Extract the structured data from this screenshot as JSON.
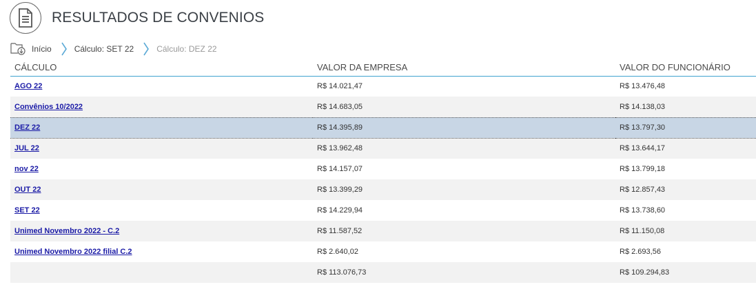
{
  "header": {
    "title": "RESULTADOS DE CONVENIOS",
    "icon": "document-icon"
  },
  "breadcrumb": {
    "home_label": "Início",
    "items": [
      "Cálculo: SET 22"
    ],
    "current": "Cálculo: DEZ 22"
  },
  "table": {
    "columns": [
      "CÁLCULO",
      "VALOR DA EMPRESA",
      "VALOR DO FUNCIONÁRIO"
    ],
    "rows": [
      {
        "calculo": "AGO 22",
        "empresa": "R$ 14.021,47",
        "funcionario": "R$ 13.476,48"
      },
      {
        "calculo": "Convênios 10/2022",
        "empresa": "R$ 14.683,05",
        "funcionario": "R$ 14.138,03"
      },
      {
        "calculo": "DEZ 22",
        "empresa": "R$ 14.395,89",
        "funcionario": "R$ 13.797,30",
        "selected": true
      },
      {
        "calculo": "JUL 22",
        "empresa": "R$ 13.962,48",
        "funcionario": "R$ 13.644,17"
      },
      {
        "calculo": "nov 22",
        "empresa": "R$ 14.157,07",
        "funcionario": "R$ 13.799,18"
      },
      {
        "calculo": "OUT 22",
        "empresa": "R$ 13.399,29",
        "funcionario": "R$ 12.857,43"
      },
      {
        "calculo": "SET 22",
        "empresa": "R$ 14.229,94",
        "funcionario": "R$ 13.738,60"
      },
      {
        "calculo": "Unimed Novembro 2022 - C.2",
        "empresa": "R$ 11.587,52",
        "funcionario": "R$ 11.150,08"
      },
      {
        "calculo": "Unimed Novembro 2022 filial C.2",
        "empresa": "R$ 2.640,02",
        "funcionario": "R$ 2.693,56"
      }
    ],
    "totals": {
      "empresa": "R$ 113.076,73",
      "funcionario": "R$ 109.294,83"
    }
  },
  "colors": {
    "accent": "#3fa3cf",
    "selected_row": "#c8d6e5",
    "link": "#1a1aa6"
  }
}
